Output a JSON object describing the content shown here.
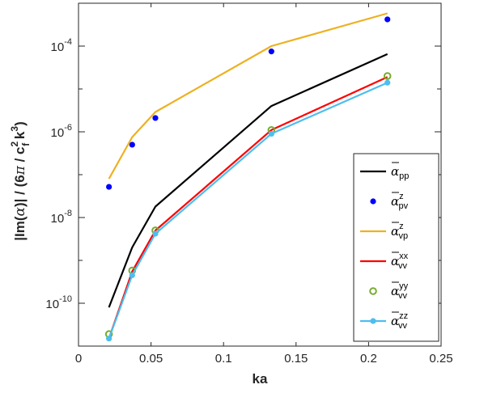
{
  "colors": {
    "axis": "#262626",
    "alpha_pp": "#000000",
    "alpha_pv_z": "#0000ff",
    "alpha_vp_z": "#edb120",
    "alpha_vv_xx": "#ff0000",
    "alpha_vv_yy": "#77ac30",
    "alpha_vv_zz": "#4dbeee"
  },
  "chart_data": {
    "type": "line",
    "xlabel": "ka",
    "ylabel": "|Im(ᾱ)| / (6π / c_f² k³)",
    "ylabel_parts": {
      "prefix": "|Im(",
      "alpha": "α",
      "mid": ")| / (6",
      "pi": "π",
      "slash": " / c",
      "sub_f": "f",
      "sup_2": "2",
      "k": " k",
      "sup_3": "3",
      "close": ")"
    },
    "xlim": [
      0,
      0.25
    ],
    "ylim": [
      1e-11,
      0.001
    ],
    "yscale": "log",
    "grid": false,
    "legend_position": "lower-right",
    "x_ticks": [
      {
        "value": 0,
        "label": "0"
      },
      {
        "value": 0.05,
        "label": "0.05"
      },
      {
        "value": 0.1,
        "label": "0.1"
      },
      {
        "value": 0.15,
        "label": "0.15"
      },
      {
        "value": 0.2,
        "label": "0.2"
      },
      {
        "value": 0.25,
        "label": "0.25"
      }
    ],
    "y_ticks": [
      {
        "value": 1e-10,
        "base": "10",
        "exp": "-10"
      },
      {
        "value": 1e-08,
        "base": "10",
        "exp": "-8"
      },
      {
        "value": 1e-06,
        "base": "10",
        "exp": "-6"
      },
      {
        "value": 0.0001,
        "base": "10",
        "exp": "-4"
      }
    ],
    "series": [
      {
        "key": "pp",
        "sym": "α",
        "sup": "",
        "sub": "pp",
        "style": "line",
        "colorKey": "alpha_pp",
        "x": [
          0.021,
          0.037,
          0.053,
          0.133,
          0.213
        ],
        "y": [
          8e-11,
          2e-09,
          1.8e-08,
          4e-06,
          6.5e-05
        ]
      },
      {
        "key": "pv_z",
        "sym": "α",
        "sup": "z",
        "sub": "pv",
        "style": "dot",
        "colorKey": "alpha_pv_z",
        "x": [
          0.021,
          0.037,
          0.053,
          0.133,
          0.213
        ],
        "y": [
          5.2e-08,
          5e-07,
          2.1e-06,
          7.5e-05,
          0.00042
        ]
      },
      {
        "key": "vp_z",
        "sym": "α",
        "sup": "z",
        "sub": "vp",
        "style": "line",
        "colorKey": "alpha_vp_z",
        "x": [
          0.021,
          0.037,
          0.053,
          0.133,
          0.213
        ],
        "y": [
          8e-08,
          7.5e-07,
          2.9e-06,
          0.0001,
          0.00058
        ]
      },
      {
        "key": "vv_xx",
        "sym": "α",
        "sup": "xx",
        "sub": "vv",
        "style": "line",
        "colorKey": "alpha_vv_xx",
        "x": [
          0.021,
          0.037,
          0.053,
          0.133,
          0.213
        ],
        "y": [
          1.5e-11,
          5.5e-10,
          5e-09,
          1.1e-06,
          1.9e-05
        ]
      },
      {
        "key": "vv_yy",
        "sym": "α",
        "sup": "yy",
        "sub": "vv",
        "style": "ring",
        "colorKey": "alpha_vv_yy",
        "x": [
          0.021,
          0.037,
          0.053,
          0.133,
          0.213
        ],
        "y": [
          1.9e-11,
          5.8e-10,
          5e-09,
          1.1e-06,
          2e-05
        ]
      },
      {
        "key": "vv_zz",
        "sym": "α",
        "sup": "zz",
        "sub": "vv",
        "style": "lineDot",
        "colorKey": "alpha_vv_zz",
        "x": [
          0.021,
          0.037,
          0.053,
          0.133,
          0.213
        ],
        "y": [
          1.5e-11,
          4.5e-10,
          4.2e-09,
          9e-07,
          1.4e-05
        ]
      }
    ]
  }
}
